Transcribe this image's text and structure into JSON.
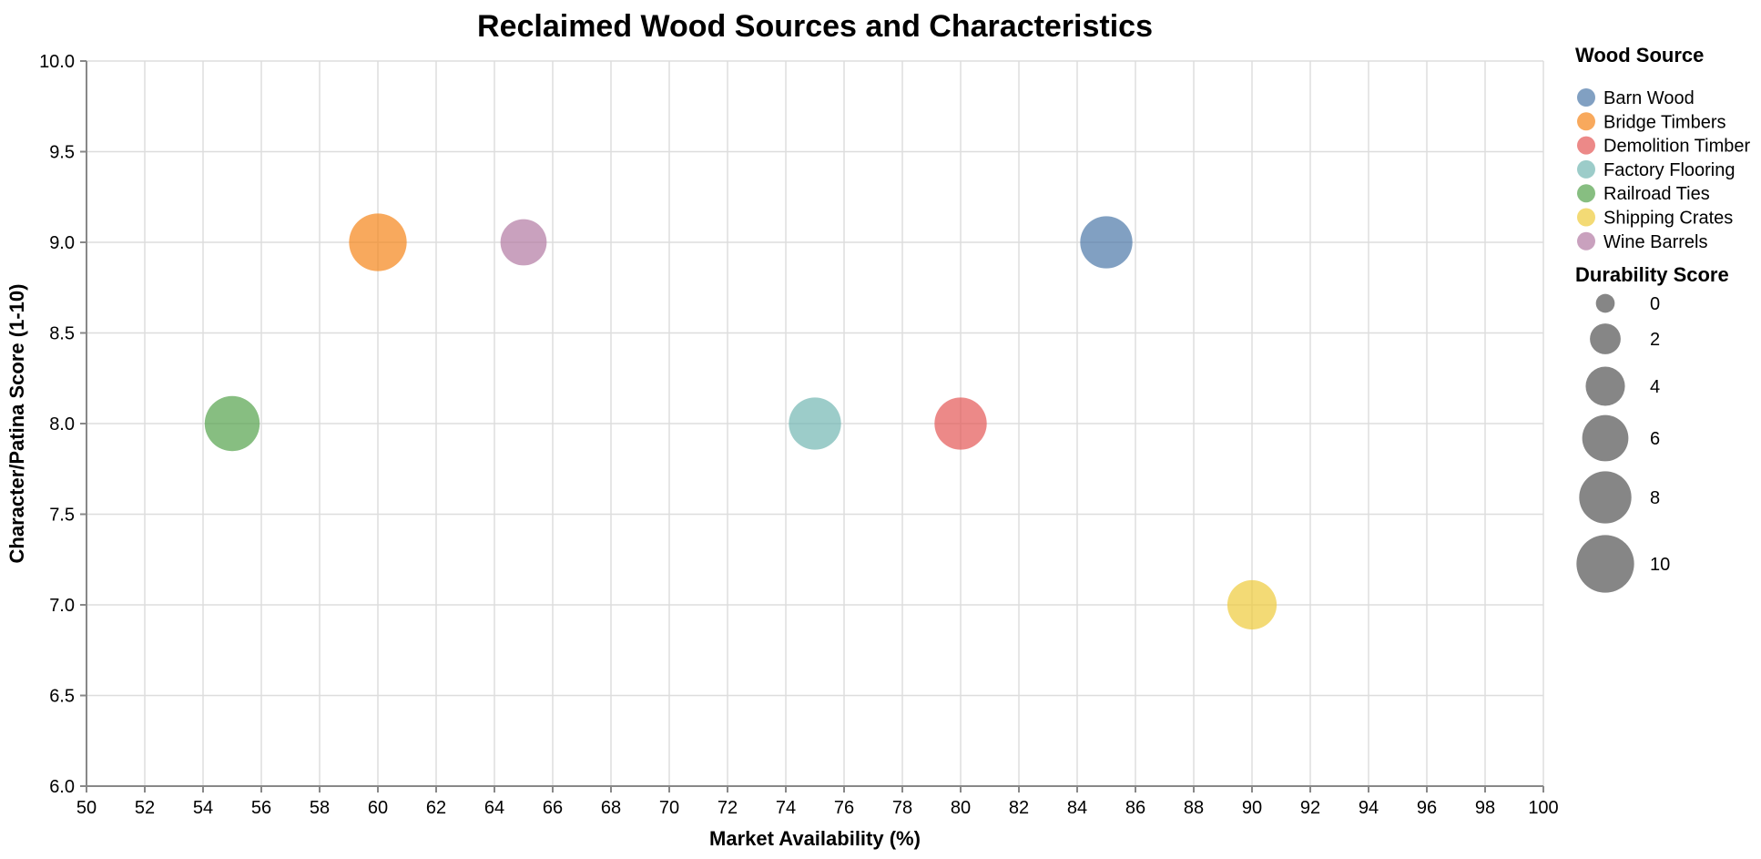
{
  "chart_data": {
    "type": "scatter",
    "title": "Reclaimed Wood Sources and Characteristics",
    "xlabel": "Market Availability (%)",
    "ylabel": "Character/Patina Score (1-10)",
    "xlim": [
      50,
      100
    ],
    "ylim": [
      6.0,
      10.0
    ],
    "grid": true,
    "x_ticks": [
      50,
      52,
      54,
      56,
      58,
      60,
      62,
      64,
      66,
      68,
      70,
      72,
      74,
      76,
      78,
      80,
      82,
      84,
      86,
      88,
      90,
      92,
      94,
      96,
      98,
      100
    ],
    "y_ticks": [
      6.0,
      6.5,
      7.0,
      7.5,
      8.0,
      8.5,
      9.0,
      9.5,
      10.0
    ],
    "y_tick_labels": [
      "6.0",
      "6.5",
      "7.0",
      "7.5",
      "8.0",
      "8.5",
      "9.0",
      "9.5",
      "10.0"
    ],
    "series": [
      {
        "name": "Barn Wood",
        "color": "#4c78a8",
        "x": 85,
        "y": 9.0,
        "durability": 8
      },
      {
        "name": "Bridge Timbers",
        "color": "#f58518",
        "x": 60,
        "y": 9.0,
        "durability": 10
      },
      {
        "name": "Demolition Timber",
        "color": "#e45756",
        "x": 80,
        "y": 8.0,
        "durability": 8
      },
      {
        "name": "Factory Flooring",
        "color": "#72b7b2",
        "x": 75,
        "y": 8.0,
        "durability": 8
      },
      {
        "name": "Railroad Ties",
        "color": "#54a24b",
        "x": 55,
        "y": 8.0,
        "durability": 9
      },
      {
        "name": "Shipping Crates",
        "color": "#eeca3b",
        "x": 90,
        "y": 7.0,
        "durability": 7
      },
      {
        "name": "Wine Barrels",
        "color": "#b279a2",
        "x": 65,
        "y": 9.0,
        "durability": 6
      }
    ],
    "mark_opacity": 0.7,
    "color_legend": {
      "title": "Wood Source"
    },
    "size_legend": {
      "title": "Durability Score",
      "values": [
        0,
        2,
        4,
        6,
        8,
        10
      ],
      "symbol_color": "#868686"
    },
    "style_colors": {
      "grid": "#dddddd",
      "axis_domain": "#888888",
      "text": "#000000"
    }
  }
}
